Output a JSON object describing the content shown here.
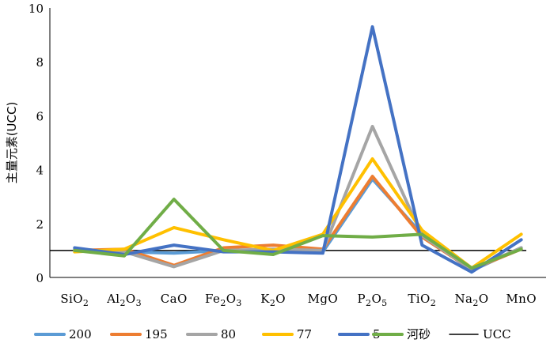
{
  "chart_data": {
    "type": "line",
    "title": "",
    "xlabel": "",
    "ylabel": "主量元素(UCC)",
    "ylim": [
      0,
      10
    ],
    "yticks": [
      0,
      2,
      4,
      6,
      8,
      10
    ],
    "grid": false,
    "legend_position": "bottom",
    "categories": [
      {
        "base": "SiO",
        "sub": "2",
        "base2": "",
        "sub2": ""
      },
      {
        "base": "Al",
        "sub": "2",
        "base2": "O",
        "sub2": "3"
      },
      {
        "base": "CaO",
        "sub": "",
        "base2": "",
        "sub2": ""
      },
      {
        "base": "Fe",
        "sub": "2",
        "base2": "O",
        "sub2": "3"
      },
      {
        "base": "K",
        "sub": "2",
        "base2": "O",
        "sub2": ""
      },
      {
        "base": "MgO",
        "sub": "",
        "base2": "",
        "sub2": ""
      },
      {
        "base": "P",
        "sub": "2",
        "base2": "O",
        "sub2": "5"
      },
      {
        "base": "TiO",
        "sub": "2",
        "base2": "",
        "sub2": ""
      },
      {
        "base": "Na",
        "sub": "2",
        "base2": "O",
        "sub2": ""
      },
      {
        "base": "MnO",
        "sub": "",
        "base2": "",
        "sub2": ""
      }
    ],
    "series": [
      {
        "name": "200",
        "color": "#5b9bd5",
        "values": [
          1.05,
          0.95,
          0.9,
          1.0,
          1.0,
          0.95,
          3.65,
          1.6,
          0.25,
          1.1
        ]
      },
      {
        "name": "195",
        "color": "#ed7d31",
        "values": [
          1.0,
          1.05,
          0.45,
          1.1,
          1.2,
          1.05,
          3.75,
          1.5,
          0.3,
          1.05
        ]
      },
      {
        "name": "80",
        "color": "#a5a5a5",
        "values": [
          1.0,
          0.95,
          0.4,
          1.0,
          1.05,
          1.0,
          5.6,
          1.55,
          0.3,
          1.1
        ]
      },
      {
        "name": "77",
        "color": "#ffc000",
        "values": [
          0.95,
          1.05,
          1.85,
          1.4,
          1.0,
          1.6,
          4.4,
          1.75,
          0.35,
          1.6
        ]
      },
      {
        "name": "5",
        "color": "#4472c4",
        "values": [
          1.1,
          0.85,
          1.2,
          0.95,
          0.95,
          0.9,
          9.3,
          1.2,
          0.2,
          1.4
        ]
      },
      {
        "name": "河砂",
        "color": "#70ad47",
        "values": [
          1.0,
          0.8,
          2.9,
          1.0,
          0.85,
          1.55,
          1.5,
          1.6,
          0.35,
          1.05
        ]
      }
    ],
    "reference_line": {
      "name": "UCC",
      "value": 1.0,
      "color": "#000000"
    }
  }
}
